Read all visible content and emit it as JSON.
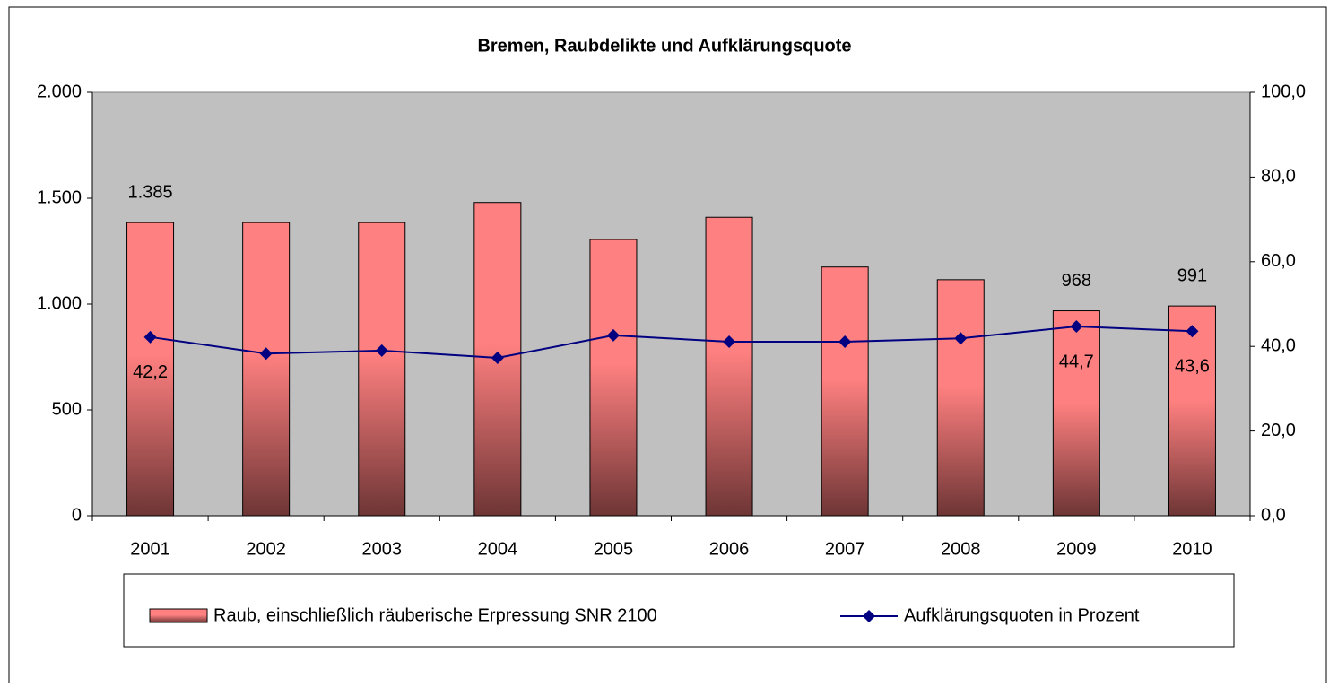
{
  "chart_data": {
    "type": "bar_line",
    "title": "Bremen, Raubdelikte und Aufklärungsquote",
    "categories": [
      "2001",
      "2002",
      "2003",
      "2004",
      "2005",
      "2006",
      "2007",
      "2008",
      "2009",
      "2010"
    ],
    "series": [
      {
        "name": "Raub, einschließlich räuberische Erpressung SNR 2100",
        "type": "bar",
        "color": "#ff8080",
        "values": [
          1385,
          1385,
          1385,
          1480,
          1305,
          1410,
          1175,
          1115,
          968,
          991
        ],
        "value_labels": [
          "1.385",
          null,
          null,
          null,
          null,
          null,
          null,
          null,
          "968",
          "991"
        ]
      },
      {
        "name": "Aufklärungsquoten in Prozent",
        "type": "line",
        "axis": "y2",
        "color": "#000080",
        "values": [
          42.2,
          38.3,
          39.0,
          37.3,
          42.6,
          41.1,
          41.1,
          41.9,
          44.7,
          43.6
        ],
        "value_labels": [
          "42,2",
          null,
          null,
          null,
          null,
          null,
          null,
          null,
          "44,7",
          "43,6"
        ]
      }
    ],
    "ylim": [
      0,
      2000
    ],
    "yticks": [
      0,
      500,
      {
        "value": 1000,
        "label": "1.000"
      },
      {
        "value": 1500,
        "label": "1.500"
      },
      {
        "value": 2000,
        "label": "2.000"
      }
    ],
    "y2lim": [
      0,
      100
    ],
    "y2ticks": [
      {
        "value": 0,
        "label": "0,0"
      },
      {
        "value": 20,
        "label": "20,0"
      },
      {
        "value": 40,
        "label": "40,0"
      },
      {
        "value": 60,
        "label": "60,0"
      },
      {
        "value": 80,
        "label": "80,0"
      },
      {
        "value": 100,
        "label": "100,0"
      }
    ],
    "plot_background": "#c0c0c0",
    "legend": "bottom"
  }
}
